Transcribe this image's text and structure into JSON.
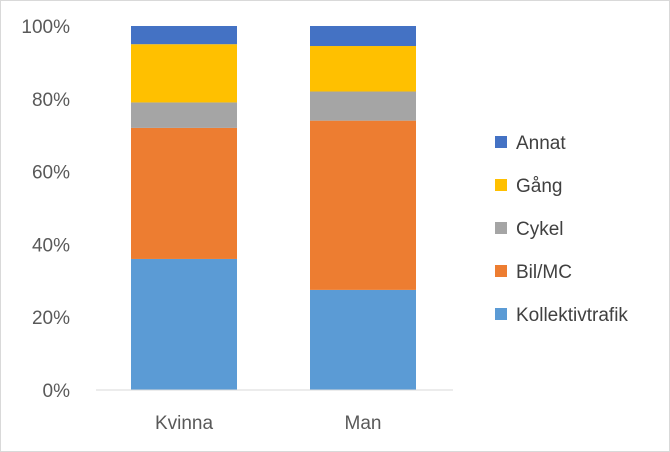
{
  "chart_data": {
    "type": "bar",
    "stacked": true,
    "percent": true,
    "categories": [
      "Kvinna",
      "Man"
    ],
    "series": [
      {
        "name": "Kollektivtrafik",
        "color": "#5b9bd5",
        "values": [
          36,
          27.5
        ]
      },
      {
        "name": "Bil/MC",
        "color": "#ed7d31",
        "values": [
          36,
          46.5
        ]
      },
      {
        "name": "Cykel",
        "color": "#a5a5a5",
        "values": [
          7,
          8
        ]
      },
      {
        "name": "Gång",
        "color": "#ffc000",
        "values": [
          16,
          12.5
        ]
      },
      {
        "name": "Annat",
        "color": "#4472c4",
        "values": [
          5,
          5.5
        ]
      }
    ],
    "yticks": [
      "0%",
      "20%",
      "40%",
      "60%",
      "80%",
      "100%"
    ],
    "ylim": [
      0,
      100
    ],
    "grid": false,
    "legend": "right"
  }
}
